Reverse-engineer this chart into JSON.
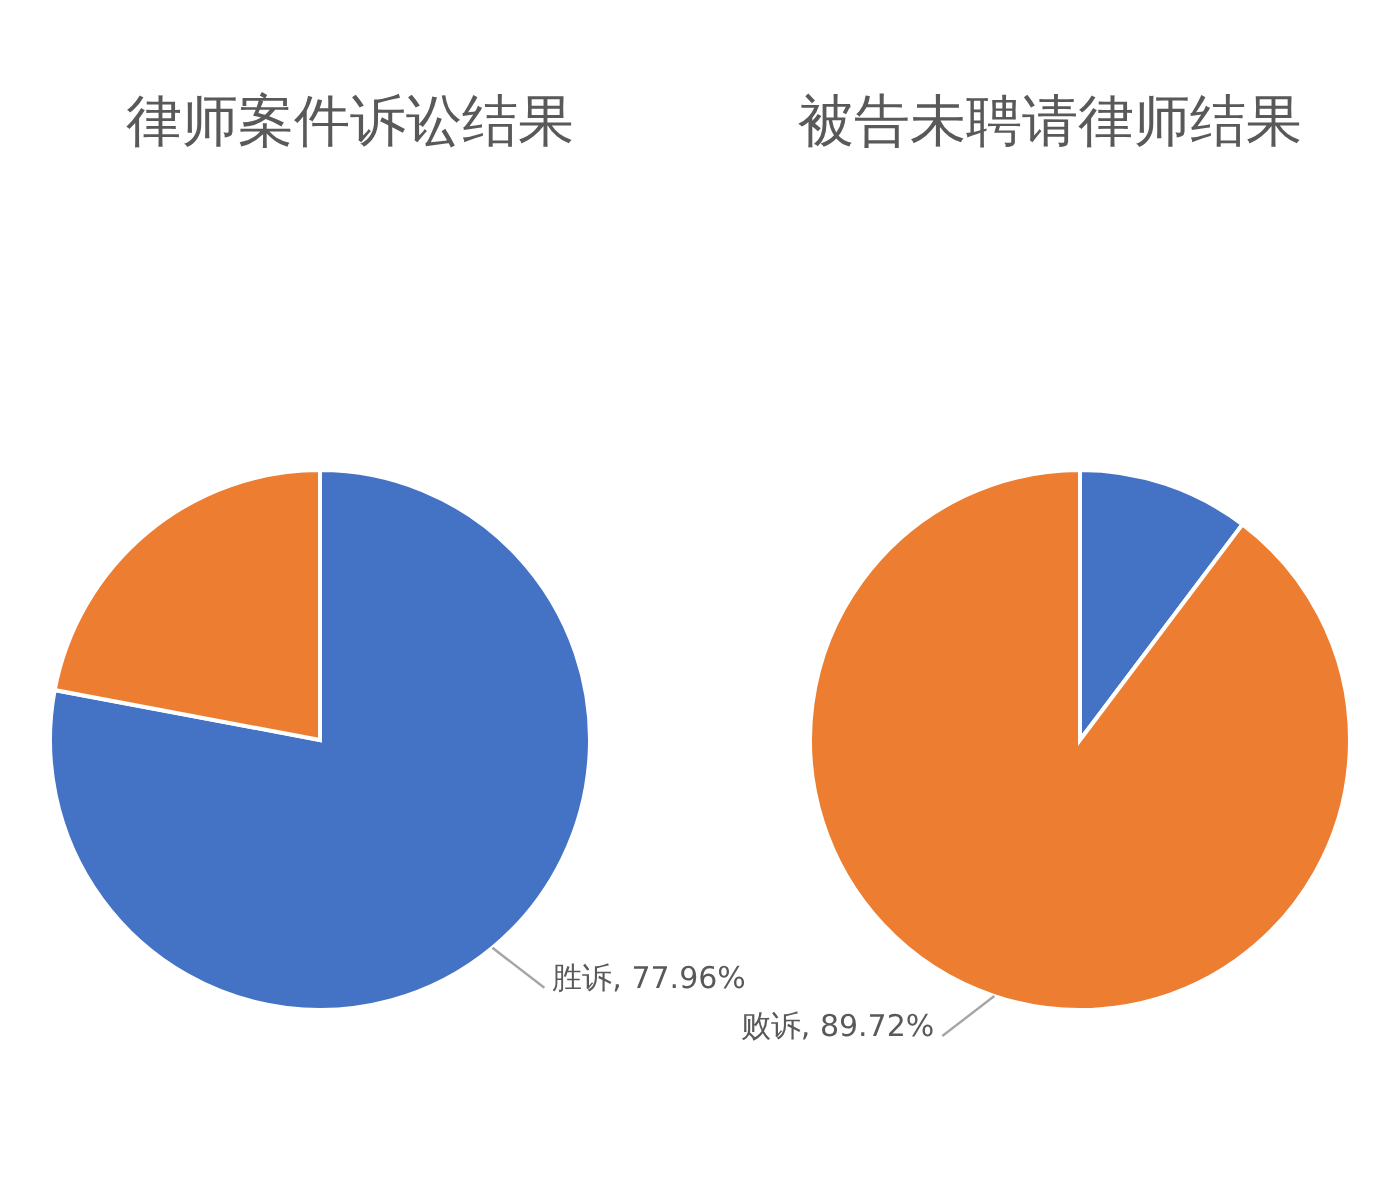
{
  "chart_data": [
    {
      "type": "pie",
      "title": "律师案件诉讼结果",
      "categories": [
        "胜诉",
        null
      ],
      "values": [
        77.96,
        22.04
      ],
      "colors": [
        "#4472c4",
        "#ed7d31"
      ],
      "value_labels": [
        "77.96%",
        null
      ]
    },
    {
      "type": "pie",
      "title": "被告未聘请律师结果",
      "categories": [
        null,
        "败诉"
      ],
      "values": [
        10.28,
        89.72
      ],
      "colors": [
        "#4472c4",
        "#ed7d31"
      ],
      "value_labels": [
        null,
        "89.72%"
      ]
    }
  ]
}
